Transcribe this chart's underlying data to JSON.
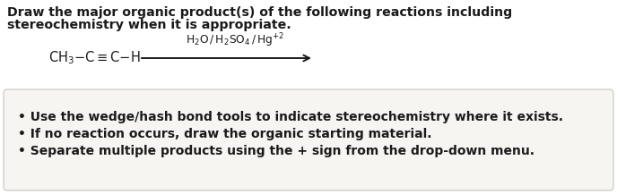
{
  "title_line1": "Draw the major organic product(s) of the following reactions including",
  "title_line2": "stereochemistry when it is appropriate.",
  "bullet1": "Use the wedge/hash bond tools to indicate stereochemistry where it exists.",
  "bullet2": "If no reaction occurs, draw the organic starting material.",
  "bullet3": "Separate multiple products using the + sign from the drop-down menu.",
  "bg_color": "#ffffff",
  "box_facecolor": "#f7f5f2",
  "box_edgecolor": "#c8c5c0",
  "text_color": "#1a1a1a",
  "arrow_color": "#1a1a1a",
  "title_fontsize": 10.2,
  "reactant_fontsize": 10.5,
  "reagent_fontsize": 8.8,
  "bullet_fontsize": 10.0,
  "fig_width": 6.88,
  "fig_height": 2.17,
  "dpi": 100
}
